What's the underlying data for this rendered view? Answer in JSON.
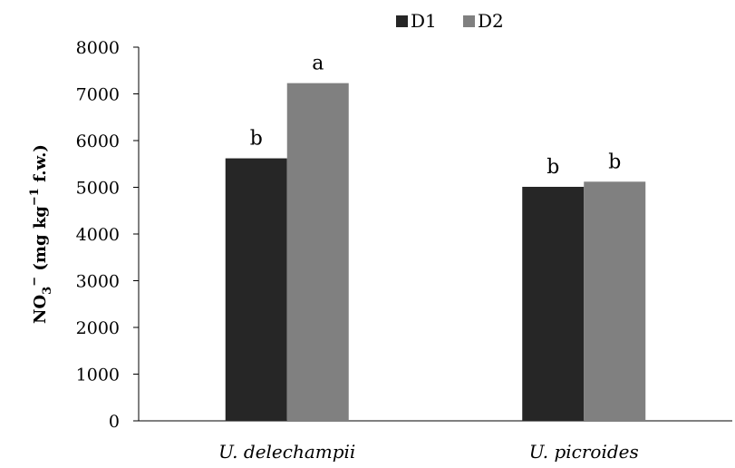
{
  "chart_data": {
    "type": "bar",
    "categories": [
      "U. delechampii",
      "U. picroides"
    ],
    "series": [
      {
        "name": "D1",
        "color": "#262626",
        "values": [
          5620,
          5010
        ],
        "labels": [
          "b",
          "b"
        ]
      },
      {
        "name": "D2",
        "color": "#808080",
        "values": [
          7230,
          5120
        ],
        "labels": [
          "a",
          "b"
        ]
      }
    ],
    "ylabel": {
      "main": "NO",
      "sub": "3",
      "sup": "−",
      "rest": " (mg kg",
      "sup2": "−1",
      "end": "  f.w.)"
    },
    "ylim": [
      0,
      8000
    ],
    "yticks": [
      0,
      1000,
      2000,
      3000,
      4000,
      5000,
      6000,
      7000,
      8000
    ],
    "legend_position": "top",
    "grid": false
  }
}
